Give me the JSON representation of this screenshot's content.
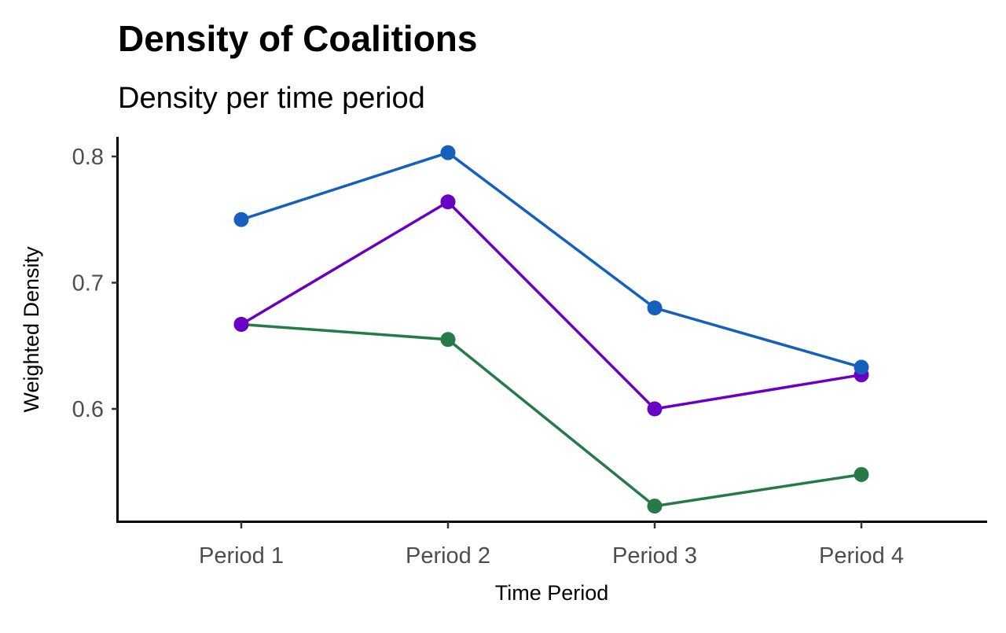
{
  "chart_data": {
    "type": "line",
    "title": "Density of Coalitions",
    "subtitle": "Density per time period",
    "xlabel": "Time Period",
    "ylabel": "Weighted Density",
    "categories": [
      "Period 1",
      "Period 2",
      "Period 3",
      "Period 4"
    ],
    "ylim": [
      0.51,
      0.815
    ],
    "yticks": [
      0.6,
      0.7,
      0.8
    ],
    "ytick_labels": [
      "0.6",
      "0.7",
      "0.8"
    ],
    "grid": false,
    "legend": "none",
    "series": [
      {
        "color": "#1560bd",
        "values": [
          0.75,
          0.803,
          0.68,
          0.633
        ]
      },
      {
        "color": "#6a00c4",
        "values": [
          0.667,
          0.764,
          0.6,
          0.627
        ]
      },
      {
        "color": "#267a48",
        "values": [
          0.667,
          0.655,
          0.523,
          0.548
        ]
      }
    ]
  }
}
